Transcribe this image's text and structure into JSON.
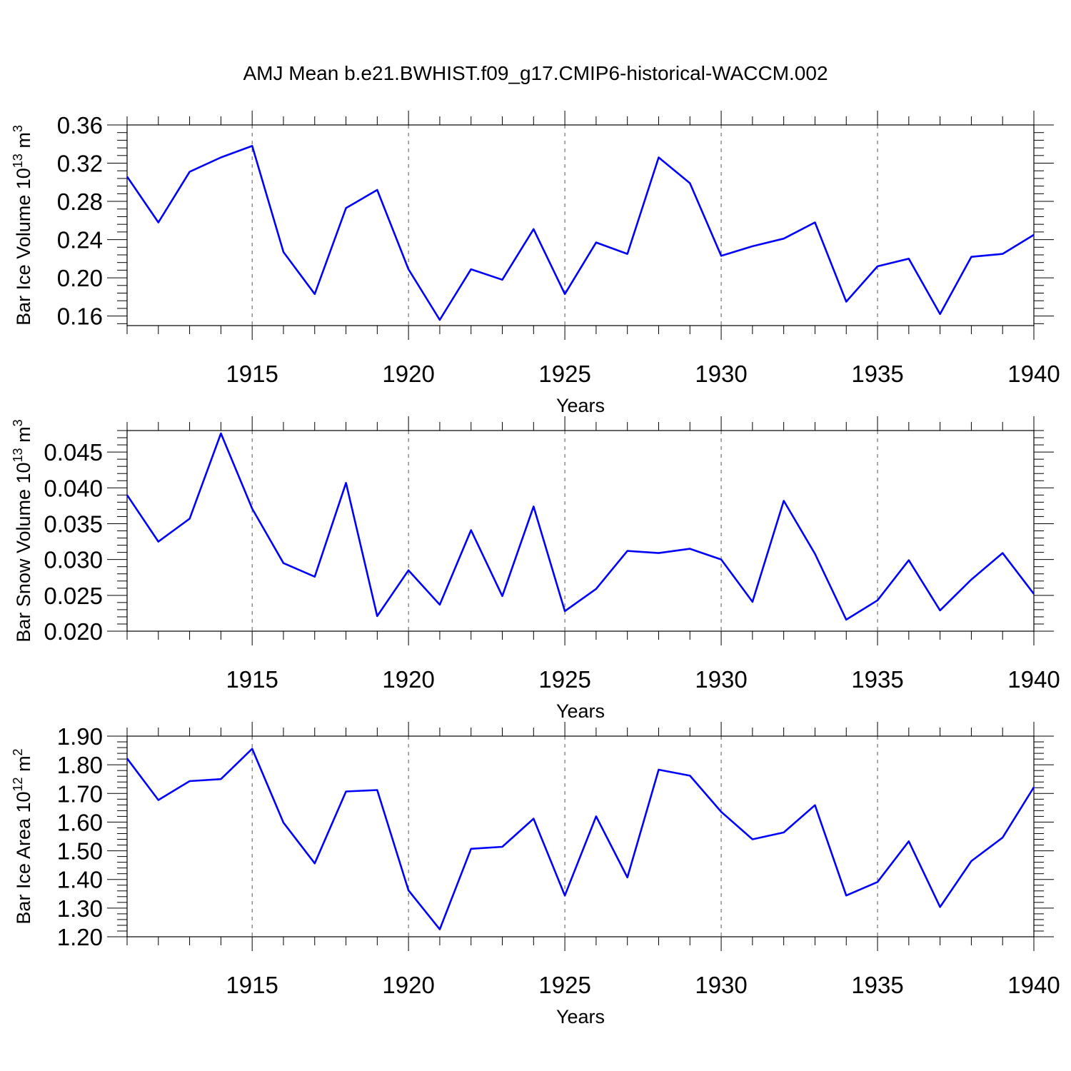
{
  "title": "AMJ Mean b.e21.BWHIST.f09_g17.CMIP6-historical-WACCM.002",
  "colors": {
    "line": "#0000ff"
  },
  "chart_data": [
    {
      "type": "line",
      "ylabel": {
        "text": "Bar Ice Volume 10",
        "exp": "13",
        "unit": "m",
        "unit_exp": "3"
      },
      "xlabel": "Years",
      "xlim": [
        1911,
        1940
      ],
      "ylim": [
        0.15,
        0.36
      ],
      "xticks": [
        1915,
        1920,
        1925,
        1930,
        1935,
        1940
      ],
      "yticks": [
        0.16,
        0.2,
        0.24,
        0.28,
        0.32,
        0.36
      ],
      "ytick_labels": [
        "0.16",
        "0.20",
        "0.24",
        "0.28",
        "0.32",
        "0.36"
      ],
      "grid": "dashed vertical at major x ticks",
      "x": [
        1911,
        1912,
        1913,
        1914,
        1915,
        1916,
        1917,
        1918,
        1919,
        1920,
        1921,
        1922,
        1923,
        1924,
        1925,
        1926,
        1927,
        1928,
        1929,
        1930,
        1931,
        1932,
        1933,
        1934,
        1935,
        1936,
        1937,
        1938,
        1939,
        1940
      ],
      "series": [
        {
          "values": [
            0.306,
            0.258,
            0.311,
            0.326,
            0.338,
            0.227,
            0.183,
            0.273,
            0.292,
            0.209,
            0.156,
            0.209,
            0.198,
            0.251,
            0.183,
            0.237,
            0.225,
            0.326,
            0.299,
            0.223,
            0.233,
            0.241,
            0.258,
            0.175,
            0.212,
            0.22,
            0.162,
            0.222,
            0.225,
            0.245
          ]
        }
      ]
    },
    {
      "type": "line",
      "ylabel": {
        "text": "Bar Snow Volume 10",
        "exp": "13",
        "unit": "m",
        "unit_exp": "3"
      },
      "xlabel": "Years",
      "xlim": [
        1911,
        1940
      ],
      "ylim": [
        0.02,
        0.048
      ],
      "xticks": [
        1915,
        1920,
        1925,
        1930,
        1935,
        1940
      ],
      "yticks": [
        0.02,
        0.025,
        0.03,
        0.035,
        0.04,
        0.045
      ],
      "ytick_labels": [
        "0.020",
        "0.025",
        "0.030",
        "0.035",
        "0.040",
        "0.045"
      ],
      "grid": "dashed vertical at major x ticks",
      "x": [
        1911,
        1912,
        1913,
        1914,
        1915,
        1916,
        1917,
        1918,
        1919,
        1920,
        1921,
        1922,
        1923,
        1924,
        1925,
        1926,
        1927,
        1928,
        1929,
        1930,
        1931,
        1932,
        1933,
        1934,
        1935,
        1936,
        1937,
        1938,
        1939,
        1940
      ],
      "series": [
        {
          "values": [
            0.039,
            0.0325,
            0.0357,
            0.0476,
            0.0371,
            0.0295,
            0.0276,
            0.0407,
            0.0221,
            0.0285,
            0.0237,
            0.0341,
            0.0249,
            0.0374,
            0.0228,
            0.0259,
            0.0312,
            0.0309,
            0.0315,
            0.03,
            0.0241,
            0.0382,
            0.0308,
            0.0216,
            0.0243,
            0.0299,
            0.0229,
            0.0272,
            0.0309,
            0.0252
          ]
        }
      ]
    },
    {
      "type": "line",
      "ylabel": {
        "text": "Bar Ice Area 10",
        "exp": "12",
        "unit": "m",
        "unit_exp": "2"
      },
      "xlabel": "Years",
      "xlim": [
        1911,
        1940
      ],
      "ylim": [
        1.2,
        1.9
      ],
      "xticks": [
        1915,
        1920,
        1925,
        1930,
        1935,
        1940
      ],
      "yticks": [
        1.2,
        1.3,
        1.4,
        1.5,
        1.6,
        1.7,
        1.8,
        1.9
      ],
      "ytick_labels": [
        "1.20",
        "1.30",
        "1.40",
        "1.50",
        "1.60",
        "1.70",
        "1.80",
        "1.90"
      ],
      "grid": "dashed vertical at major x ticks",
      "x": [
        1911,
        1912,
        1913,
        1914,
        1915,
        1916,
        1917,
        1918,
        1919,
        1920,
        1921,
        1922,
        1923,
        1924,
        1925,
        1926,
        1927,
        1928,
        1929,
        1930,
        1931,
        1932,
        1933,
        1934,
        1935,
        1936,
        1937,
        1938,
        1939,
        1940
      ],
      "series": [
        {
          "values": [
            1.822,
            1.677,
            1.743,
            1.75,
            1.856,
            1.598,
            1.456,
            1.707,
            1.712,
            1.362,
            1.226,
            1.507,
            1.514,
            1.612,
            1.344,
            1.62,
            1.407,
            1.783,
            1.762,
            1.636,
            1.54,
            1.564,
            1.659,
            1.344,
            1.391,
            1.533,
            1.304,
            1.464,
            1.546,
            1.722
          ]
        }
      ]
    }
  ]
}
